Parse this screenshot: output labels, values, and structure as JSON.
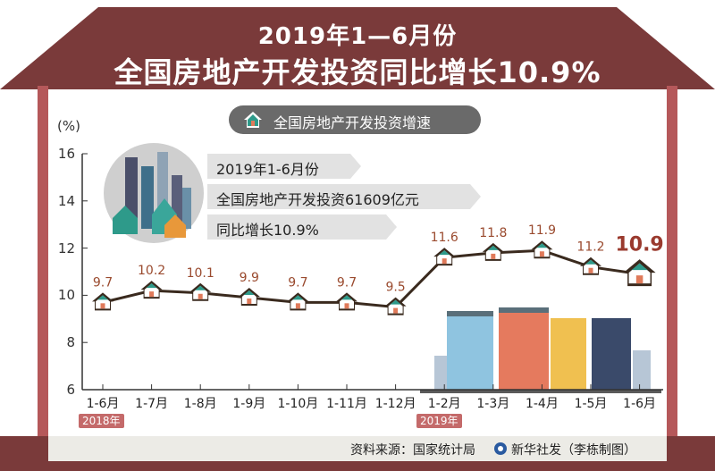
{
  "header": {
    "title_line1": "2019年1—6月份",
    "title_line2": "全国房地产开发投资同比增长10.9%"
  },
  "legend": {
    "label": "全国房地产开发投资增速",
    "icon": "house-icon"
  },
  "info": {
    "line1": "2019年1-6月份",
    "line2": "全国房地产开发投资61609亿元",
    "line3": "同比增长10.9%"
  },
  "years": {
    "y2018": "2018年",
    "y2019": "2019年"
  },
  "footer": {
    "source": "资料来源：国家统计局",
    "agency": "新华社发（李栋制图）"
  },
  "colors": {
    "wall": "#b5585a",
    "roof": "#7a3a3a",
    "line": "#3a2a1e",
    "marker": "#2e9a8a",
    "value": "#9a4a2e"
  },
  "chart_data": {
    "type": "line",
    "title": "全国房地产开发投资增速",
    "ylabel": "(%)",
    "ylim": [
      6,
      16
    ],
    "yticks": [
      6,
      8,
      10,
      12,
      14,
      16
    ],
    "categories": [
      "1-6月",
      "1-7月",
      "1-8月",
      "1-9月",
      "1-10月",
      "1-11月",
      "1-12月",
      "1-2月",
      "1-3月",
      "1-4月",
      "1-5月",
      "1-6月"
    ],
    "values": [
      9.7,
      10.2,
      10.1,
      9.9,
      9.7,
      9.7,
      9.5,
      11.6,
      11.8,
      11.9,
      11.2,
      10.9
    ],
    "labels": [
      "9.7",
      "10.2",
      "10.1",
      "9.9",
      "9.7",
      "9.7",
      "9.5",
      "11.6",
      "11.8",
      "11.9",
      "11.2",
      "10.9"
    ],
    "grid": false
  }
}
